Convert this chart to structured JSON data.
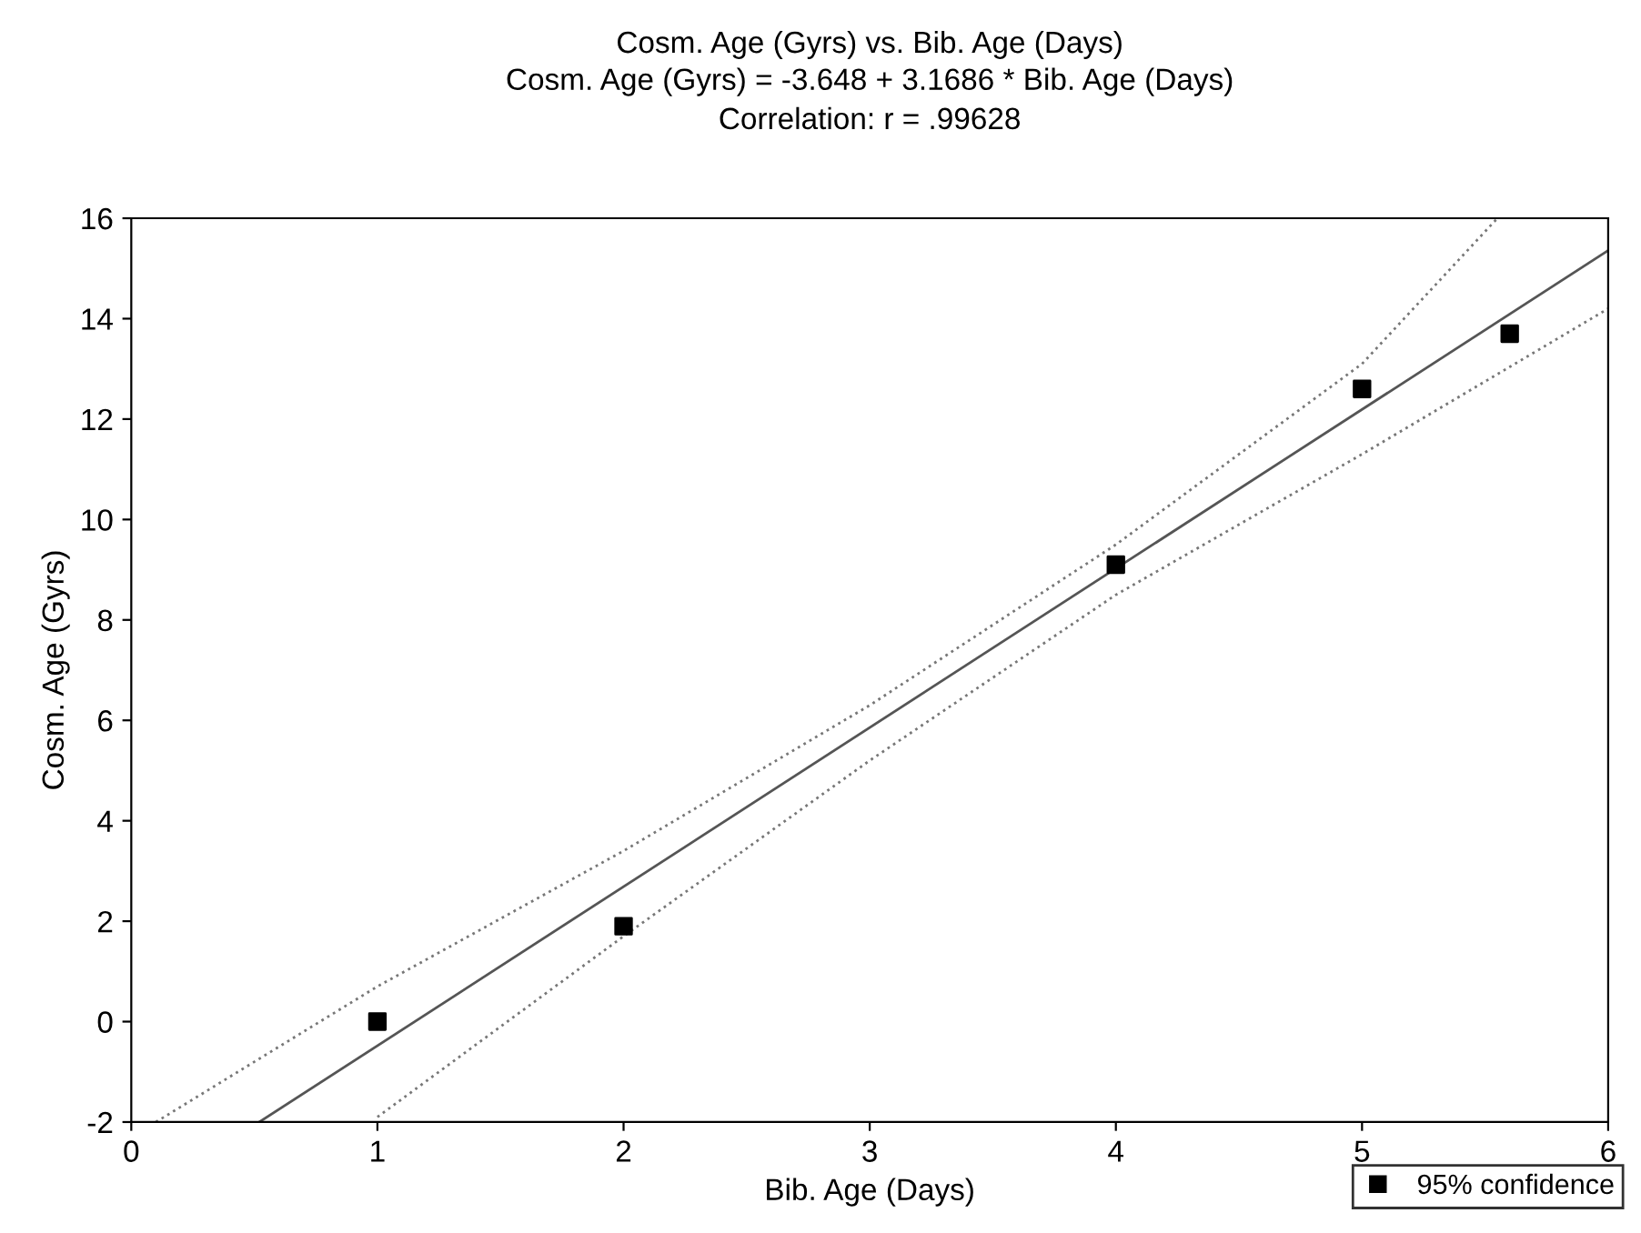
{
  "chart_data": {
    "type": "scatter",
    "title": "Cosm. Age (Gyrs) vs. Bib. Age (Days)",
    "subtitle": "Cosm. Age (Gyrs) = -3.648 + 3.1686 * Bib. Age (Days)\nCorrelation: r = .99628",
    "xlabel": "Bib. Age (Days)",
    "ylabel": "Cosm. Age (Gyrs)",
    "series": [
      {
        "name": "95% confidence",
        "color": "#000000",
        "marker": "square",
        "x": [
          1,
          2,
          4,
          5,
          5.6
        ],
        "values": [
          0,
          1.9,
          9.1,
          12.6,
          13.7
        ]
      },
      {
        "type": "line",
        "color": "#555555",
        "line_style": "solid",
        "x": [
          0.52,
          6
        ],
        "values": [
          -2,
          15.36
        ]
      },
      {
        "type": "line",
        "color": "#777777",
        "line_style": "dotted",
        "x": [
          0.1,
          1,
          2,
          3,
          4,
          5,
          5.55
        ],
        "values": [
          -2,
          0.7,
          3.4,
          6.3,
          9.5,
          13.1,
          16
        ]
      },
      {
        "type": "line",
        "color": "#777777",
        "line_style": "dotted",
        "x": [
          1,
          2,
          3,
          4,
          5,
          6
        ],
        "values": [
          -1.9,
          1.7,
          5.2,
          8.5,
          11.3,
          14.2
        ]
      }
    ],
    "xlim": [
      0,
      6
    ],
    "xticks": [
      0,
      1,
      2,
      3,
      4,
      5,
      6
    ],
    "ylim": [
      -2,
      16
    ],
    "yticks": [
      -2,
      0,
      2,
      4,
      6,
      8,
      10,
      12,
      14,
      16
    ],
    "grid": false,
    "legend": "bottom right"
  }
}
